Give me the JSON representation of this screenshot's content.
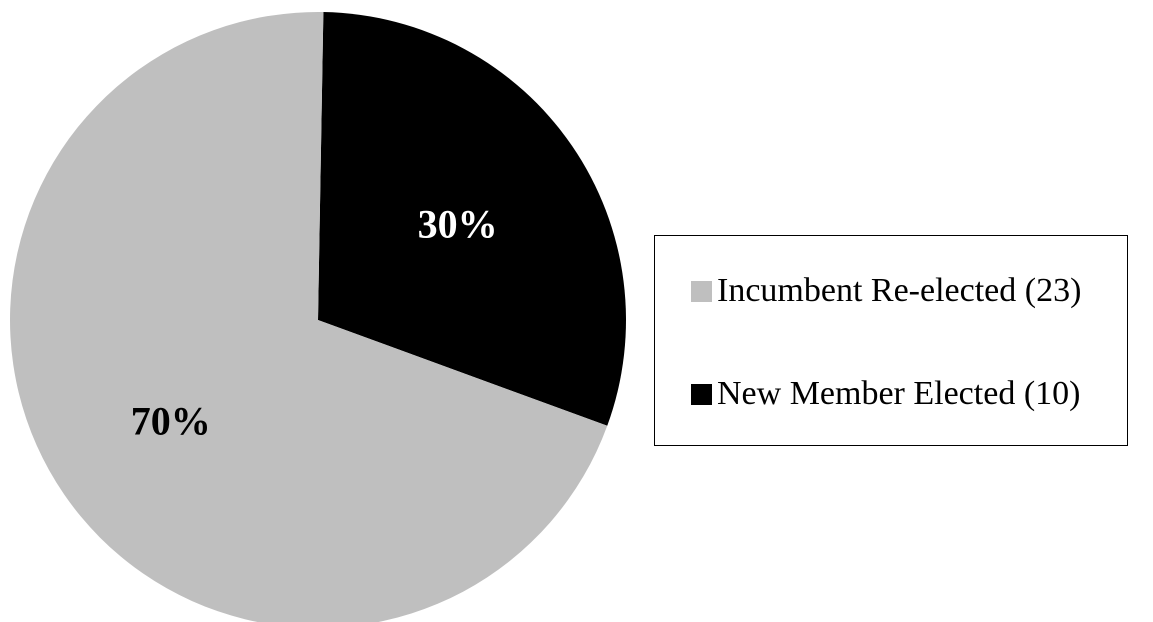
{
  "chart_data": {
    "type": "pie",
    "title": "",
    "slices": [
      {
        "legend_label": "Incumbent Re-elected (23)",
        "value": 23,
        "percent_label": "70%",
        "color": "#bfbfbf",
        "label_color": "#000000"
      },
      {
        "legend_label": "New Member Elected (10)",
        "value": 10,
        "percent_label": "30%",
        "color": "#000000",
        "label_color": "#ffffff"
      }
    ],
    "legend_position": "right"
  }
}
